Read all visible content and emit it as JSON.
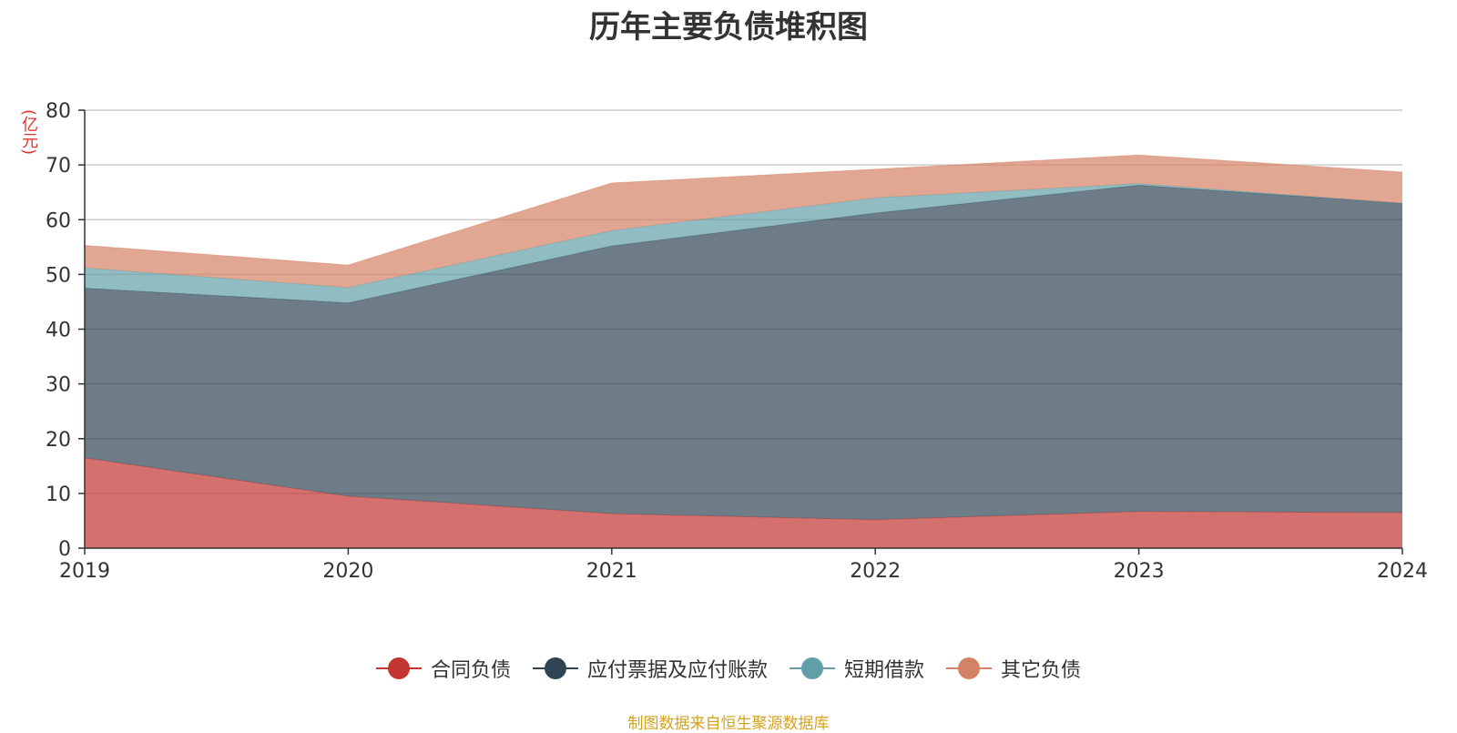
{
  "page": {
    "title": "历年主要负债堆积图",
    "unit": "(亿元)",
    "source": "制图数据来自恒生聚源数据库"
  },
  "chart_data": {
    "type": "area",
    "stacked": true,
    "categories": [
      "2019",
      "2020",
      "2021",
      "2022",
      "2023",
      "2024"
    ],
    "ylim": [
      0,
      80
    ],
    "yticks": [
      0,
      10,
      20,
      30,
      40,
      50,
      60,
      70,
      80
    ],
    "grid": true,
    "legend_position": "bottom",
    "series": [
      {
        "name": "合同负债",
        "color": "#c23531",
        "values": [
          16.5,
          9.5,
          6.3,
          5.2,
          6.7,
          6.5
        ]
      },
      {
        "name": "应付票据及应付账款",
        "color": "#2f4554",
        "values": [
          31.0,
          35.3,
          48.9,
          56.0,
          59.6,
          56.5
        ]
      },
      {
        "name": "短期借款",
        "color": "#61a0a8",
        "values": [
          3.7,
          2.8,
          2.8,
          2.8,
          0.3,
          0.0
        ]
      },
      {
        "name": "其它负债",
        "color": "#d48265",
        "values": [
          4.1,
          4.1,
          8.7,
          5.2,
          5.2,
          5.7
        ]
      }
    ]
  }
}
